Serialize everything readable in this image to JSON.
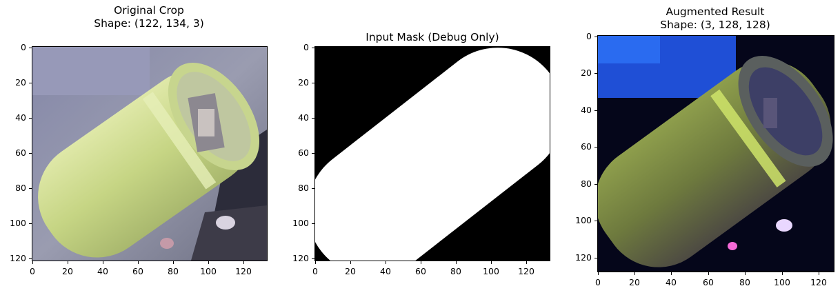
{
  "panels": [
    {
      "title_line1": "Original Crop",
      "title_line2": "Shape: (122, 134, 3)",
      "x_ticks": [
        "0",
        "20",
        "40",
        "60",
        "80",
        "100",
        "120"
      ],
      "y_ticks": [
        "0",
        "20",
        "40",
        "60",
        "80",
        "100",
        "120"
      ],
      "image": "photo of a light-green cylindrical can lying diagonally"
    },
    {
      "title_line1": "Input Mask (Debug Only)",
      "title_line2": "",
      "x_ticks": [
        "0",
        "20",
        "40",
        "60",
        "80",
        "100",
        "120"
      ],
      "y_ticks": [
        "0",
        "20",
        "40",
        "60",
        "80",
        "100",
        "120"
      ],
      "image": "binary mask, white capsule shape on black"
    },
    {
      "title_line1": "Augmented Result",
      "title_line2": "Shape: (3, 128, 128)",
      "x_ticks": [
        "0",
        "20",
        "40",
        "60",
        "80",
        "100",
        "120"
      ],
      "y_ticks": [
        "0",
        "20",
        "40",
        "60",
        "80",
        "100",
        "120"
      ],
      "image": "color-jittered, darkened version of the can crop"
    }
  ],
  "colors": {
    "can_body": "#c9d88a",
    "background_gray": "#8d8fa4",
    "mask_white": "#ffffff",
    "mask_black": "#000000",
    "aug_blue": "#1f4fd6"
  }
}
